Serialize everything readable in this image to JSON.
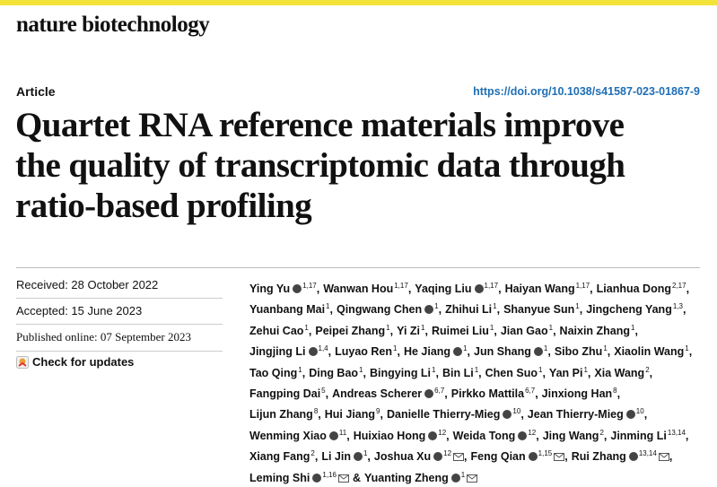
{
  "header": {
    "journal": "nature biotechnology",
    "article_type": "Article",
    "doi": "https://doi.org/10.1038/s41587-023-01867-9"
  },
  "title": [
    "Quartet RNA reference materials improve",
    "the quality of transcriptomic data through",
    "ratio-based profiling"
  ],
  "dates": {
    "received": "Received: 28 October 2022",
    "accepted": "Accepted: 15 June 2023",
    "published": "Published online: 07 September 2023"
  },
  "check_updates": "Check for updates",
  "authors": {
    "conjunction": "&",
    "lines": [
      [
        {
          "name": "Ying Yu",
          "orcid": true,
          "aff": "1,17"
        },
        {
          "name": "Wanwan Hou",
          "aff": "1,17"
        },
        {
          "name": "Yaqing Liu",
          "orcid": true,
          "aff": "1,17"
        },
        {
          "name": "Haiyan Wang",
          "aff": "1,17"
        },
        {
          "name": "Lianhua Dong",
          "aff": "2,17"
        }
      ],
      [
        {
          "name": "Yuanbang Mai",
          "aff": "1"
        },
        {
          "name": "Qingwang Chen",
          "orcid": true,
          "aff": "1"
        },
        {
          "name": "Zhihui Li",
          "aff": "1"
        },
        {
          "name": "Shanyue Sun",
          "aff": "1"
        },
        {
          "name": "Jingcheng Yang",
          "aff": "1,3"
        }
      ],
      [
        {
          "name": "Zehui Cao",
          "aff": "1"
        },
        {
          "name": "Peipei Zhang",
          "aff": "1"
        },
        {
          "name": "Yi Zi",
          "aff": "1"
        },
        {
          "name": "Ruimei Liu",
          "aff": "1"
        },
        {
          "name": "Jian Gao",
          "aff": "1"
        },
        {
          "name": "Naixin Zhang",
          "aff": "1"
        }
      ],
      [
        {
          "name": "Jingjing Li",
          "orcid": true,
          "aff": "1,4"
        },
        {
          "name": "Luyao Ren",
          "aff": "1"
        },
        {
          "name": "He Jiang",
          "orcid": true,
          "aff": "1"
        },
        {
          "name": "Jun Shang",
          "orcid": true,
          "aff": "1"
        },
        {
          "name": "Sibo Zhu",
          "aff": "1"
        },
        {
          "name": "Xiaolin Wang",
          "aff": "1"
        }
      ],
      [
        {
          "name": "Tao Qing",
          "aff": "1"
        },
        {
          "name": "Ding Bao",
          "aff": "1"
        },
        {
          "name": "Bingying Li",
          "aff": "1"
        },
        {
          "name": "Bin Li",
          "aff": "1"
        },
        {
          "name": "Chen Suo",
          "aff": "1"
        },
        {
          "name": "Yan Pi",
          "aff": "1"
        },
        {
          "name": "Xia Wang",
          "aff": "2"
        }
      ],
      [
        {
          "name": "Fangping Dai",
          "aff": "5"
        },
        {
          "name": "Andreas Scherer",
          "orcid": true,
          "aff": "6,7"
        },
        {
          "name": "Pirkko Mattila",
          "aff": "6,7"
        },
        {
          "name": "Jinxiong Han",
          "aff": "8"
        }
      ],
      [
        {
          "name": "Lijun Zhang",
          "aff": "8"
        },
        {
          "name": "Hui Jiang",
          "aff": "9"
        },
        {
          "name": "Danielle Thierry-Mieg",
          "orcid": true,
          "aff": "10"
        },
        {
          "name": "Jean Thierry-Mieg",
          "orcid": true,
          "aff": "10"
        }
      ],
      [
        {
          "name": "Wenming Xiao",
          "orcid": true,
          "aff": "11"
        },
        {
          "name": "Huixiao Hong",
          "orcid": true,
          "aff": "12"
        },
        {
          "name": "Weida Tong",
          "orcid": true,
          "aff": "12"
        },
        {
          "name": "Jing Wang",
          "aff": "2"
        },
        {
          "name": "Jinming Li",
          "aff": "13,14"
        }
      ],
      [
        {
          "name": "Xiang Fang",
          "aff": "2"
        },
        {
          "name": "Li Jin",
          "orcid": true,
          "aff": "1"
        },
        {
          "name": "Joshua Xu",
          "orcid": true,
          "aff": "12",
          "email": true
        },
        {
          "name": "Feng Qian",
          "orcid": true,
          "aff": "1,15",
          "email": true
        },
        {
          "name": "Rui Zhang",
          "orcid": true,
          "aff": "13,14",
          "email": true
        }
      ],
      [
        {
          "name": "Leming Shi",
          "orcid": true,
          "aff": "1,16",
          "email": true
        },
        {
          "name": "Yuanting Zheng",
          "orcid": true,
          "aff": "1",
          "email": true
        }
      ]
    ]
  }
}
